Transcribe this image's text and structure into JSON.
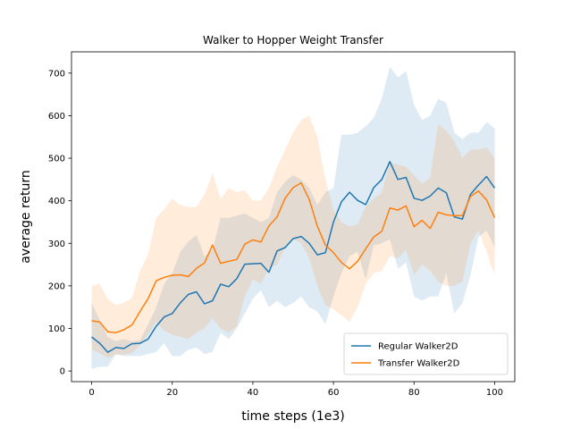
{
  "chart_data": {
    "type": "line",
    "title": "Walker to Hopper Weight Transfer",
    "xlabel": "time steps (1e3)",
    "ylabel": "average return",
    "xlim": [
      -5,
      105
    ],
    "ylim": [
      -25,
      750
    ],
    "xticks": [
      0,
      20,
      40,
      60,
      80,
      100
    ],
    "yticks": [
      0,
      100,
      200,
      300,
      400,
      500,
      600,
      700
    ],
    "grid": false,
    "legend_position": "lower-right",
    "x": [
      0,
      2,
      4,
      6,
      8,
      10,
      12,
      14,
      16,
      18,
      20,
      22,
      24,
      26,
      28,
      30,
      32,
      34,
      36,
      38,
      40,
      42,
      44,
      46,
      48,
      50,
      52,
      54,
      56,
      58,
      60,
      62,
      64,
      66,
      68,
      70,
      72,
      74,
      76,
      78,
      80,
      82,
      84,
      86,
      88,
      90,
      92,
      94,
      96,
      98,
      100
    ],
    "series": [
      {
        "name": "Regular Walker2D",
        "color": "#1f77b4",
        "values": [
          80,
          65,
          44,
          55,
          53,
          64,
          65,
          75,
          105,
          127,
          135,
          160,
          180,
          186,
          158,
          165,
          204,
          198,
          217,
          251,
          252,
          253,
          232,
          282,
          290,
          311,
          316,
          300,
          273,
          278,
          350,
          398,
          420,
          401,
          391,
          431,
          450,
          492,
          450,
          455,
          406,
          401,
          411,
          430,
          419,
          362,
          357,
          415,
          437,
          457,
          430
        ],
        "upper": [
          160,
          120,
          80,
          70,
          75,
          70,
          72,
          110,
          150,
          205,
          230,
          280,
          305,
          320,
          270,
          285,
          360,
          360,
          365,
          370,
          360,
          350,
          360,
          420,
          445,
          460,
          450,
          430,
          390,
          420,
          430,
          555,
          555,
          560,
          575,
          595,
          640,
          715,
          690,
          705,
          625,
          590,
          600,
          640,
          630,
          560,
          545,
          560,
          560,
          585,
          570
        ],
        "lower": [
          5,
          10,
          10,
          40,
          35,
          35,
          35,
          40,
          45,
          65,
          35,
          35,
          50,
          55,
          40,
          45,
          90,
          75,
          100,
          135,
          170,
          190,
          150,
          165,
          150,
          160,
          175,
          150,
          140,
          110,
          175,
          230,
          270,
          280,
          215,
          295,
          300,
          310,
          240,
          255,
          175,
          165,
          175,
          175,
          230,
          135,
          160,
          225,
          315,
          330,
          290
        ]
      },
      {
        "name": "Transfer Walker2D",
        "color": "#ff7f0e",
        "values": [
          118,
          115,
          92,
          90,
          97,
          108,
          140,
          170,
          212,
          220,
          225,
          226,
          222,
          241,
          254,
          296,
          253,
          258,
          262,
          298,
          308,
          303,
          341,
          362,
          406,
          431,
          442,
          403,
          340,
          296,
          278,
          255,
          240,
          258,
          287,
          315,
          328,
          383,
          378,
          388,
          339,
          354,
          335,
          373,
          367,
          365,
          365,
          410,
          423,
          402,
          360
        ],
        "upper": [
          200,
          205,
          168,
          155,
          160,
          172,
          235,
          275,
          360,
          380,
          405,
          390,
          385,
          385,
          415,
          465,
          405,
          430,
          420,
          425,
          400,
          400,
          430,
          480,
          520,
          560,
          590,
          600,
          550,
          450,
          380,
          350,
          340,
          345,
          385,
          405,
          420,
          490,
          485,
          480,
          460,
          440,
          455,
          580,
          565,
          540,
          500,
          520,
          520,
          525,
          500
        ],
        "lower": [
          50,
          42,
          30,
          38,
          38,
          42,
          60,
          85,
          115,
          95,
          85,
          80,
          75,
          90,
          100,
          125,
          100,
          90,
          105,
          175,
          215,
          205,
          240,
          250,
          290,
          310,
          300,
          265,
          200,
          155,
          145,
          130,
          115,
          150,
          205,
          230,
          235,
          270,
          265,
          285,
          225,
          250,
          235,
          210,
          200,
          200,
          210,
          300,
          330,
          280,
          225
        ]
      }
    ]
  }
}
